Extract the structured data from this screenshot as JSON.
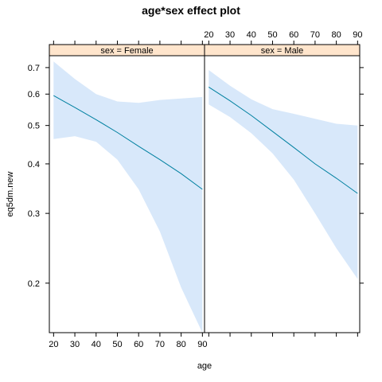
{
  "chart_data": {
    "type": "line",
    "title": "age*sex effect plot",
    "xlabel": "age",
    "ylabel": "eq5dm.new",
    "x_ticks": [
      20,
      30,
      40,
      50,
      60,
      70,
      80,
      90
    ],
    "y_ticks": [
      0.2,
      0.3,
      0.4,
      0.5,
      0.6,
      0.7
    ],
    "xlim": [
      18,
      91
    ],
    "ylim": [
      0.15,
      0.75
    ],
    "grid": false,
    "colors": {
      "line": "#0080a0",
      "band": "#d8e8fa",
      "strip": "#ffe5cc",
      "frame": "#000000"
    },
    "panels": [
      {
        "strip_label": "sex = Female",
        "x": [
          20,
          30,
          40,
          50,
          60,
          70,
          80,
          90
        ],
        "fit": [
          0.595,
          0.555,
          0.517,
          0.48,
          0.443,
          0.41,
          0.378,
          0.345
        ],
        "lower": [
          0.462,
          0.47,
          0.455,
          0.41,
          0.345,
          0.27,
          0.195,
          0.15
        ],
        "upper": [
          0.725,
          0.655,
          0.6,
          0.575,
          0.57,
          0.58,
          0.585,
          0.59
        ]
      },
      {
        "strip_label": "sex = Male",
        "x": [
          20,
          30,
          40,
          50,
          60,
          70,
          80,
          90
        ],
        "fit": [
          0.625,
          0.577,
          0.53,
          0.483,
          0.44,
          0.4,
          0.368,
          0.337
        ],
        "lower": [
          0.565,
          0.525,
          0.478,
          0.425,
          0.365,
          0.3,
          0.245,
          0.205
        ],
        "upper": [
          0.69,
          0.63,
          0.582,
          0.55,
          0.535,
          0.52,
          0.505,
          0.5
        ]
      }
    ]
  }
}
